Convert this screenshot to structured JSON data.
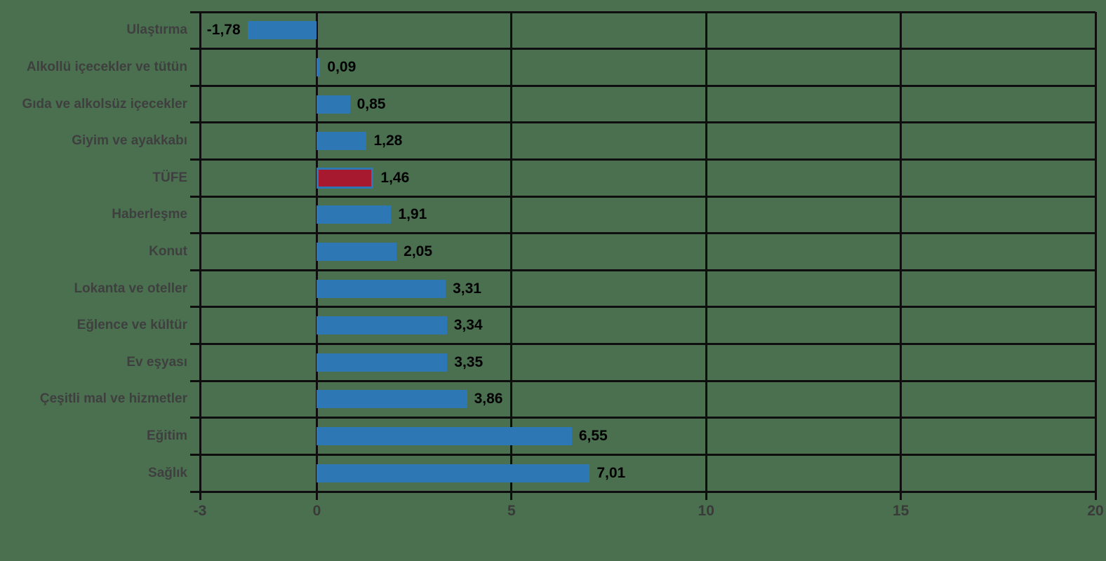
{
  "page": {
    "background_color": "#4a7050",
    "grid_color": "#0e0e0e",
    "category_label_color": "#3f3f3f",
    "value_label_color": "#000000",
    "tick_label_color": "#3a3a3a"
  },
  "chart_data": {
    "type": "bar",
    "orientation": "horizontal",
    "title": "",
    "xlabel": "",
    "ylabel": "",
    "xlim": [
      -3,
      20
    ],
    "x_ticks": [
      -3,
      0,
      5,
      10,
      15,
      20
    ],
    "x_tick_labels": [
      "-3",
      "0",
      "5",
      "10",
      "15",
      "20"
    ],
    "grid": true,
    "legend": "none",
    "categories": [
      "Ulaştırma",
      "Alkollü içecekler ve tütün",
      "Gıda ve alkolsüz içecekler",
      "Giyim ve ayakkabı",
      "TÜFE",
      "Haberleşme",
      "Konut",
      "Lokanta ve oteller",
      "Eğlence ve kültür",
      "Ev eşyası",
      "Çeşitli mal ve hizmetler",
      "Eğitim",
      "Sağlık"
    ],
    "values": [
      -1.78,
      0.09,
      0.85,
      1.28,
      1.46,
      1.91,
      2.05,
      3.31,
      3.34,
      3.35,
      3.86,
      6.55,
      7.01
    ],
    "value_labels": [
      "-1,78",
      "0,09",
      "0,85",
      "1,28",
      "1,46",
      "1,91",
      "2,05",
      "3,31",
      "3,34",
      "3,35",
      "3,86",
      "6,55",
      "7,01"
    ],
    "bar_color": "#2e77b5",
    "highlight_category": "TÜFE",
    "highlight_fill": "#a6192e",
    "highlight_border": "#2e77b5"
  }
}
